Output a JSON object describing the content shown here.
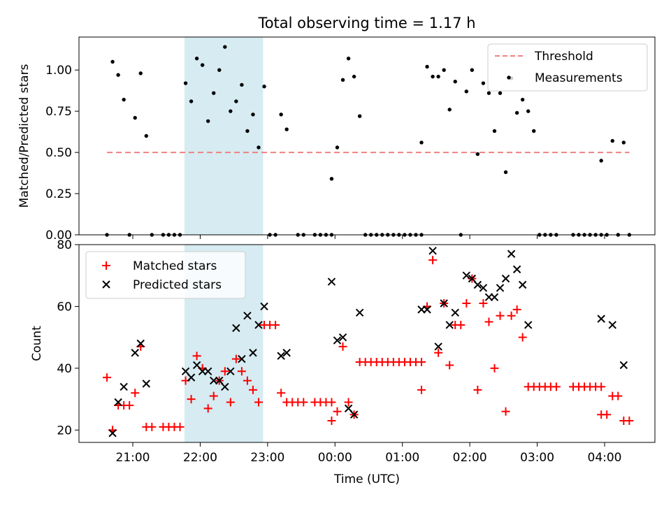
{
  "title": "Total observing time = 1.17 h",
  "xlabel": "Time (UTC)",
  "x_ticks": [
    "21:00",
    "22:00",
    "23:00",
    "00:00",
    "01:00",
    "02:00",
    "03:00",
    "04:00"
  ],
  "colors": {
    "threshold": "#f08080",
    "measurements": "#000000",
    "matched": "#ff0000",
    "predicted": "#000000",
    "shade": "#add8e6"
  },
  "chart_data": [
    {
      "type": "scatter",
      "ylabel": "Matched/Predicted stars",
      "ylim": [
        0,
        1.2
      ],
      "yticks": [
        "0.00",
        "0.25",
        "0.50",
        "0.75",
        "1.00"
      ],
      "shaded_time_range": [
        "21:46",
        "22:56"
      ],
      "threshold": {
        "name": "Threshold",
        "value": 0.5,
        "x_range": [
          "20:37",
          "04:22"
        ]
      },
      "legend": [
        "Threshold",
        "Measurements"
      ],
      "legend_position": "upper right",
      "series": [
        {
          "name": "Measurements",
          "points": [
            [
              "20:37",
              0.0
            ],
            [
              "20:42",
              1.05
            ],
            [
              "20:47",
              0.97
            ],
            [
              "20:52",
              0.82
            ],
            [
              "20:57",
              0.0
            ],
            [
              "21:02",
              0.71
            ],
            [
              "21:07",
              0.98
            ],
            [
              "21:12",
              0.6
            ],
            [
              "21:17",
              0.0
            ],
            [
              "21:27",
              0.0
            ],
            [
              "21:32",
              0.0
            ],
            [
              "21:37",
              0.0
            ],
            [
              "21:42",
              0.0
            ],
            [
              "21:47",
              0.92
            ],
            [
              "21:52",
              0.81
            ],
            [
              "21:57",
              1.07
            ],
            [
              "22:02",
              1.03
            ],
            [
              "22:07",
              0.69
            ],
            [
              "22:12",
              0.86
            ],
            [
              "22:17",
              1.0
            ],
            [
              "22:22",
              1.14
            ],
            [
              "22:27",
              0.75
            ],
            [
              "22:32",
              0.81
            ],
            [
              "22:37",
              0.91
            ],
            [
              "22:42",
              0.63
            ],
            [
              "22:47",
              0.73
            ],
            [
              "22:52",
              0.53
            ],
            [
              "22:57",
              0.9
            ],
            [
              "23:02",
              0.0
            ],
            [
              "23:07",
              0.0
            ],
            [
              "23:12",
              0.73
            ],
            [
              "23:17",
              0.64
            ],
            [
              "23:27",
              0.0
            ],
            [
              "23:32",
              0.0
            ],
            [
              "23:42",
              0.0
            ],
            [
              "23:47",
              0.0
            ],
            [
              "23:52",
              0.0
            ],
            [
              "23:57",
              0.0
            ],
            [
              "23:57",
              0.34
            ],
            [
              "00:02",
              0.53
            ],
            [
              "00:07",
              0.94
            ],
            [
              "00:12",
              1.07
            ],
            [
              "00:17",
              0.96
            ],
            [
              "00:22",
              0.72
            ],
            [
              "00:27",
              0.0
            ],
            [
              "00:32",
              0.0
            ],
            [
              "00:37",
              0.0
            ],
            [
              "00:42",
              0.0
            ],
            [
              "00:47",
              0.0
            ],
            [
              "00:52",
              0.0
            ],
            [
              "00:57",
              0.0
            ],
            [
              "01:02",
              0.0
            ],
            [
              "01:07",
              0.0
            ],
            [
              "01:12",
              0.0
            ],
            [
              "01:17",
              0.0
            ],
            [
              "01:17",
              0.56
            ],
            [
              "01:22",
              1.02
            ],
            [
              "01:27",
              0.96
            ],
            [
              "01:32",
              0.96
            ],
            [
              "01:37",
              1.0
            ],
            [
              "01:42",
              0.76
            ],
            [
              "01:47",
              0.93
            ],
            [
              "01:52",
              0.0
            ],
            [
              "01:57",
              0.87
            ],
            [
              "02:02",
              1.0
            ],
            [
              "02:07",
              0.49
            ],
            [
              "02:12",
              0.92
            ],
            [
              "02:17",
              0.86
            ],
            [
              "02:22",
              0.63
            ],
            [
              "02:27",
              0.86
            ],
            [
              "02:32",
              0.38
            ],
            [
              "02:37",
              0.95
            ],
            [
              "02:42",
              0.74
            ],
            [
              "02:47",
              0.82
            ],
            [
              "02:52",
              0.75
            ],
            [
              "02:57",
              0.63
            ],
            [
              "03:02",
              0.0
            ],
            [
              "03:07",
              0.0
            ],
            [
              "03:12",
              0.0
            ],
            [
              "03:17",
              0.0
            ],
            [
              "03:32",
              0.0
            ],
            [
              "03:37",
              0.0
            ],
            [
              "03:42",
              0.0
            ],
            [
              "03:47",
              0.0
            ],
            [
              "03:52",
              0.0
            ],
            [
              "03:57",
              0.0
            ],
            [
              "03:57",
              0.45
            ],
            [
              "04:02",
              0.0
            ],
            [
              "04:07",
              0.57
            ],
            [
              "04:12",
              0.0
            ],
            [
              "04:17",
              0.56
            ],
            [
              "04:22",
              0.0
            ]
          ]
        }
      ]
    },
    {
      "type": "scatter",
      "ylabel": "Count",
      "ylim": [
        16,
        80
      ],
      "yticks": [
        "20",
        "40",
        "60",
        "80"
      ],
      "shaded_time_range": [
        "21:46",
        "22:56"
      ],
      "legend": [
        "Matched stars",
        "Predicted stars"
      ],
      "legend_position": "upper left",
      "series": [
        {
          "name": "Matched stars",
          "marker": "+",
          "points": [
            [
              "20:37",
              37
            ],
            [
              "20:42",
              20
            ],
            [
              "20:47",
              28
            ],
            [
              "20:52",
              28
            ],
            [
              "20:57",
              28
            ],
            [
              "21:02",
              32
            ],
            [
              "21:07",
              47
            ],
            [
              "21:12",
              21
            ],
            [
              "21:17",
              21
            ],
            [
              "21:27",
              21
            ],
            [
              "21:32",
              21
            ],
            [
              "21:37",
              21
            ],
            [
              "21:42",
              21
            ],
            [
              "21:47",
              36
            ],
            [
              "21:52",
              30
            ],
            [
              "21:57",
              44
            ],
            [
              "22:02",
              40
            ],
            [
              "22:07",
              27
            ],
            [
              "22:12",
              31
            ],
            [
              "22:17",
              36
            ],
            [
              "22:22",
              39
            ],
            [
              "22:27",
              29
            ],
            [
              "22:32",
              43
            ],
            [
              "22:37",
              39
            ],
            [
              "22:42",
              36
            ],
            [
              "22:47",
              33
            ],
            [
              "22:52",
              29
            ],
            [
              "22:57",
              54
            ],
            [
              "23:02",
              54
            ],
            [
              "23:07",
              54
            ],
            [
              "23:12",
              32
            ],
            [
              "23:17",
              29
            ],
            [
              "23:22",
              29
            ],
            [
              "23:27",
              29
            ],
            [
              "23:32",
              29
            ],
            [
              "23:42",
              29
            ],
            [
              "23:47",
              29
            ],
            [
              "23:52",
              29
            ],
            [
              "23:57",
              29
            ],
            [
              "23:57",
              23
            ],
            [
              "00:02",
              26
            ],
            [
              "00:07",
              47
            ],
            [
              "00:12",
              29
            ],
            [
              "00:17",
              25
            ],
            [
              "00:22",
              42
            ],
            [
              "00:27",
              42
            ],
            [
              "00:32",
              42
            ],
            [
              "00:37",
              42
            ],
            [
              "00:42",
              42
            ],
            [
              "00:47",
              42
            ],
            [
              "00:52",
              42
            ],
            [
              "00:57",
              42
            ],
            [
              "01:02",
              42
            ],
            [
              "01:07",
              42
            ],
            [
              "01:12",
              42
            ],
            [
              "01:17",
              42
            ],
            [
              "01:17",
              33
            ],
            [
              "01:22",
              60
            ],
            [
              "01:27",
              75
            ],
            [
              "01:32",
              45
            ],
            [
              "01:37",
              61
            ],
            [
              "01:42",
              41
            ],
            [
              "01:47",
              54
            ],
            [
              "01:52",
              54
            ],
            [
              "01:57",
              61
            ],
            [
              "02:02",
              69
            ],
            [
              "02:07",
              33
            ],
            [
              "02:12",
              61
            ],
            [
              "02:17",
              55
            ],
            [
              "02:22",
              40
            ],
            [
              "02:27",
              57
            ],
            [
              "02:32",
              26
            ],
            [
              "02:37",
              57
            ],
            [
              "02:42",
              59
            ],
            [
              "02:47",
              50
            ],
            [
              "02:52",
              34
            ],
            [
              "02:57",
              34
            ],
            [
              "03:02",
              34
            ],
            [
              "03:07",
              34
            ],
            [
              "03:12",
              34
            ],
            [
              "03:17",
              34
            ],
            [
              "03:32",
              34
            ],
            [
              "03:37",
              34
            ],
            [
              "03:42",
              34
            ],
            [
              "03:47",
              34
            ],
            [
              "03:52",
              34
            ],
            [
              "03:57",
              34
            ],
            [
              "03:57",
              25
            ],
            [
              "04:02",
              25
            ],
            [
              "04:07",
              31
            ],
            [
              "04:12",
              31
            ],
            [
              "04:17",
              23
            ],
            [
              "04:22",
              23
            ]
          ]
        },
        {
          "name": "Predicted stars",
          "marker": "x",
          "points": [
            [
              "20:42",
              19
            ],
            [
              "20:47",
              29
            ],
            [
              "20:52",
              34
            ],
            [
              "21:02",
              45
            ],
            [
              "21:07",
              48
            ],
            [
              "21:12",
              35
            ],
            [
              "21:47",
              39
            ],
            [
              "21:52",
              37
            ],
            [
              "21:57",
              41
            ],
            [
              "22:02",
              39
            ],
            [
              "22:07",
              39
            ],
            [
              "22:12",
              36
            ],
            [
              "22:17",
              36
            ],
            [
              "22:22",
              34
            ],
            [
              "22:27",
              39
            ],
            [
              "22:32",
              53
            ],
            [
              "22:37",
              43
            ],
            [
              "22:42",
              57
            ],
            [
              "22:47",
              45
            ],
            [
              "22:52",
              54
            ],
            [
              "22:57",
              60
            ],
            [
              "23:12",
              44
            ],
            [
              "23:17",
              45
            ],
            [
              "23:57",
              68
            ],
            [
              "00:02",
              49
            ],
            [
              "00:07",
              50
            ],
            [
              "00:12",
              27
            ],
            [
              "00:17",
              25
            ],
            [
              "00:22",
              58
            ],
            [
              "01:17",
              59
            ],
            [
              "01:22",
              59
            ],
            [
              "01:27",
              78
            ],
            [
              "01:32",
              47
            ],
            [
              "01:37",
              61
            ],
            [
              "01:42",
              54
            ],
            [
              "01:47",
              58
            ],
            [
              "01:57",
              70
            ],
            [
              "02:02",
              69
            ],
            [
              "02:07",
              67
            ],
            [
              "02:12",
              66
            ],
            [
              "02:17",
              63
            ],
            [
              "02:22",
              63
            ],
            [
              "02:27",
              66
            ],
            [
              "02:32",
              69
            ],
            [
              "02:37",
              77
            ],
            [
              "02:42",
              72
            ],
            [
              "02:47",
              67
            ],
            [
              "02:52",
              54
            ],
            [
              "03:57",
              56
            ],
            [
              "04:07",
              54
            ],
            [
              "04:17",
              41
            ]
          ]
        }
      ]
    }
  ]
}
